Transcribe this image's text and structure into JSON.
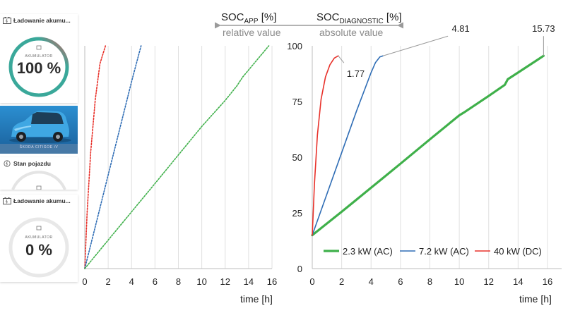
{
  "header": {
    "soc_app": "SOC",
    "soc_app_sub": "APP",
    "soc_app_unit": " [%]",
    "soc_diag": "SOC",
    "soc_diag_sub": "DIAGNOSTIC",
    "soc_diag_unit": " [%]",
    "relative": "relative value",
    "absolute": "absolute value"
  },
  "app": {
    "card1_title": "Ładowanie akumu...",
    "card1_gauge_label": "AKUMULATOR",
    "card1_value": "100 %",
    "car_name": "ŠKODA CITIGOE iV",
    "card2_title": "Stan pojazdu",
    "card3_title": "Ładowanie akumu...",
    "card3_gauge_label": "AKUMULATOR",
    "card3_value": "0 %",
    "accent": "#3aa89a",
    "accent_end": "#e05a5a"
  },
  "chart_data": [
    {
      "type": "line",
      "title": "",
      "xlabel": "time [h]",
      "ylabel": "",
      "xlim": [
        0,
        16
      ],
      "ylim": [
        0,
        100
      ],
      "xticks": [
        0,
        2,
        4,
        6,
        8,
        10,
        12,
        14,
        16
      ],
      "grid": "vertical",
      "series": [
        {
          "color": "#e8312a",
          "dashed": true,
          "x": [
            0,
            0.2,
            0.5,
            0.9,
            1.3,
            1.77
          ],
          "y": [
            0,
            25,
            52,
            76,
            92,
            100
          ]
        },
        {
          "color": "#2f6db5",
          "dashed": true,
          "x": [
            0,
            1,
            2,
            3,
            4,
            4.81
          ],
          "y": [
            0,
            21,
            42,
            63,
            84,
            100
          ]
        },
        {
          "color": "#3fb04a",
          "dashed": true,
          "x": [
            0,
            2,
            4,
            6,
            8,
            10,
            12,
            13,
            13.5,
            15.73
          ],
          "y": [
            0,
            12.8,
            25.5,
            38.2,
            51,
            63.8,
            75.5,
            82,
            86,
            100
          ]
        }
      ]
    },
    {
      "type": "line",
      "title": "",
      "xlabel": "time [h]",
      "ylabel": "",
      "xlim": [
        0,
        16
      ],
      "ylim": [
        0,
        100
      ],
      "xticks": [
        0,
        2,
        4,
        6,
        8,
        10,
        12,
        14,
        16
      ],
      "yticks": [
        0,
        25,
        50,
        75,
        100
      ],
      "grid": "vertical",
      "legend_position": "bottom",
      "series": [
        {
          "name": "2.3 kW (AC)",
          "color": "#3fb04a",
          "width": 3.2,
          "x": [
            0,
            2,
            4,
            6,
            8,
            10,
            10.3,
            12,
            13.1,
            13.3,
            14,
            15.73
          ],
          "y": [
            15,
            25.5,
            36.3,
            47.1,
            58,
            68.8,
            70,
            77.5,
            82.5,
            85,
            88,
            95.5
          ]
        },
        {
          "name": "7.2 kW (AC)",
          "color": "#2f6db5",
          "width": 1.6,
          "x": [
            0,
            1,
            2,
            3,
            4,
            4.3,
            4.6,
            4.81
          ],
          "y": [
            15,
            33.5,
            52,
            70.5,
            88,
            92.5,
            95,
            95.5
          ]
        },
        {
          "name": "40 kW (DC)",
          "color": "#e8312a",
          "width": 1.6,
          "x": [
            0,
            0.15,
            0.35,
            0.6,
            0.9,
            1.2,
            1.5,
            1.77
          ],
          "y": [
            15,
            38,
            60,
            76,
            86,
            91.5,
            94.5,
            95.5
          ]
        }
      ],
      "annotations": [
        {
          "text": "1.77",
          "x": 1.77,
          "y": 95.5
        },
        {
          "text": "4.81",
          "x": 4.81,
          "y": 95.5
        },
        {
          "text": "15.73",
          "x": 15.73,
          "y": 95.5
        }
      ]
    }
  ]
}
